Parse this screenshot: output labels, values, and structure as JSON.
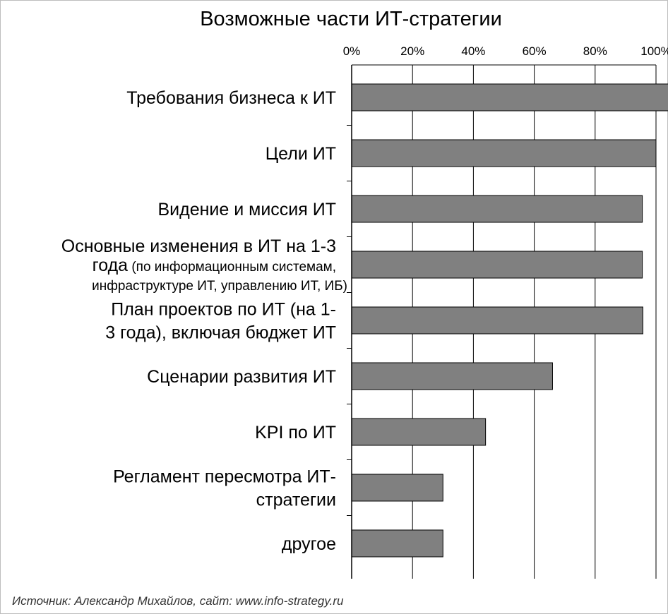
{
  "chart_data": {
    "type": "bar",
    "orientation": "horizontal",
    "title": "Возможные части ИТ-стратегии",
    "x_ticks": [
      "0%",
      "20%",
      "40%",
      "60%",
      "80%",
      "100%"
    ],
    "xlim": [
      0,
      100
    ],
    "grid": true,
    "categories": [
      "Требования бизнеса к ИТ",
      "Цели ИТ",
      "Видение и миссия ИТ",
      "Основные изменения в ИТ на 1-3 года (по информационным системам, инфраструктуре ИТ, управлению ИТ, ИБ)",
      "План проектов по ИТ (на 1-3 года), включая бюджет ИТ",
      "Сценарии развития ИТ",
      "KPI по ИТ",
      "Регламент пересмотра ИТ-стратегии",
      "другое"
    ],
    "category_lines": [
      [
        {
          "t": "Требования бизнеса к ИТ"
        }
      ],
      [
        {
          "t": "Цели ИТ"
        }
      ],
      [
        {
          "t": "Видение и миссия ИТ"
        }
      ],
      [
        {
          "t": "Основные изменения в ИТ на 1-3"
        },
        {
          "t": "года",
          "tail": " (по информационным системам,"
        },
        {
          "small": "инфраструктуре ИТ, управлению ИТ, ИБ)"
        }
      ],
      [
        {
          "t": "План проектов по ИТ (на 1-"
        },
        {
          "t": "3 года), включая бюджет ИТ"
        }
      ],
      [
        {
          "t": "Сценарии развития ИТ"
        }
      ],
      [
        {
          "t": "KPI по ИТ"
        }
      ],
      [
        {
          "t": "Регламент пересмотра ИТ-"
        },
        {
          "t": "стратегии"
        }
      ],
      [
        {
          "t": "другое"
        }
      ]
    ],
    "values": [
      105,
      100,
      95.5,
      95.5,
      95.7,
      66,
      44,
      30,
      30
    ],
    "colors": {
      "bar": "#808080",
      "bar_edge": "#000000",
      "grid": "#000000"
    }
  },
  "source": "Источник: Александр Михайлов, сайт: www.info-strategy.ru"
}
